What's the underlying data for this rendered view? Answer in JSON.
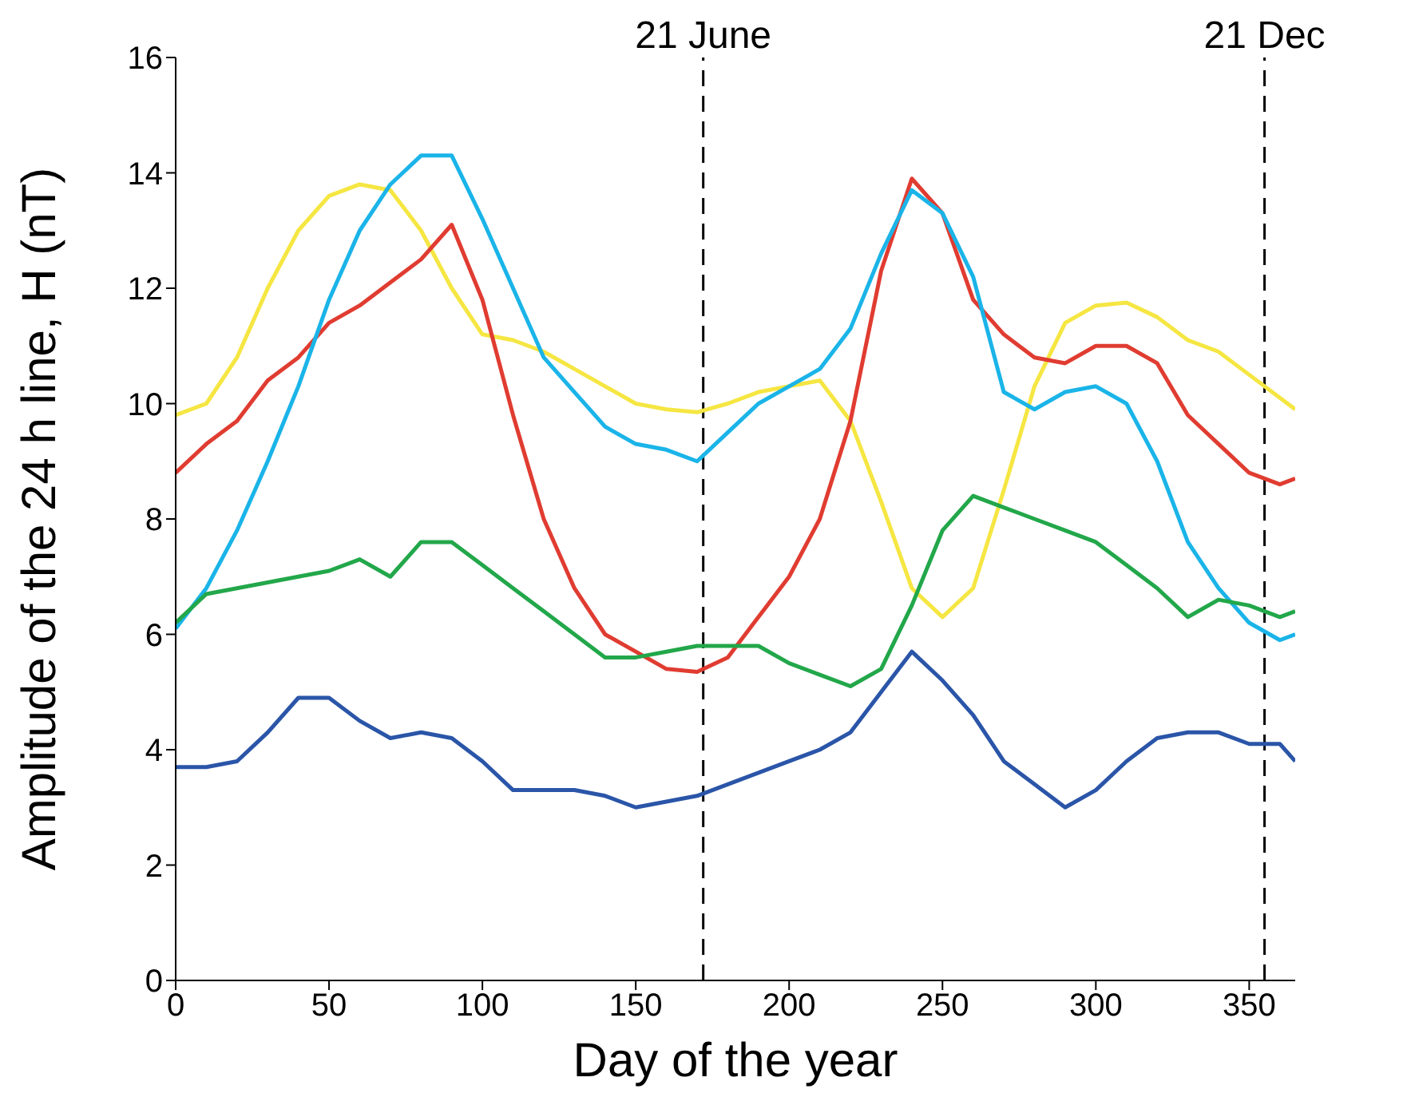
{
  "chart_data": {
    "type": "line",
    "xlabel": "Day of the year",
    "ylabel": "Amplitude of the 24 h line, H (nT)",
    "x": [
      0,
      10,
      20,
      30,
      40,
      50,
      60,
      70,
      80,
      90,
      100,
      110,
      120,
      130,
      140,
      150,
      160,
      170,
      180,
      190,
      200,
      210,
      220,
      230,
      240,
      250,
      260,
      270,
      280,
      290,
      300,
      310,
      320,
      330,
      340,
      350,
      360,
      365
    ],
    "series": [
      {
        "color": "#f5e642",
        "values": [
          9.8,
          10.0,
          10.8,
          12.0,
          13.0,
          13.6,
          13.8,
          13.7,
          13.0,
          12.0,
          11.2,
          11.1,
          10.9,
          10.6,
          10.3,
          10.0,
          9.9,
          9.85,
          10.0,
          10.2,
          10.3,
          10.4,
          9.7,
          8.3,
          6.8,
          6.3,
          6.8,
          8.5,
          10.3,
          11.4,
          11.7,
          11.75,
          11.5,
          11.1,
          10.9,
          10.5,
          10.1,
          9.9
        ]
      },
      {
        "color": "#e03c31",
        "values": [
          8.8,
          9.3,
          9.7,
          10.4,
          10.8,
          11.4,
          11.7,
          12.1,
          12.5,
          13.1,
          11.8,
          9.8,
          8.0,
          6.8,
          6.0,
          5.7,
          5.4,
          5.35,
          5.6,
          6.3,
          7.0,
          8.0,
          9.7,
          12.3,
          13.9,
          13.3,
          11.8,
          11.2,
          10.8,
          10.7,
          11.0,
          11.0,
          10.7,
          9.8,
          9.3,
          8.8,
          8.6,
          8.7
        ]
      },
      {
        "color": "#1ab4e8",
        "values": [
          6.1,
          6.8,
          7.8,
          9.0,
          10.3,
          11.8,
          13.0,
          13.8,
          14.3,
          14.3,
          13.2,
          12.0,
          10.8,
          10.2,
          9.6,
          9.3,
          9.2,
          9.0,
          9.5,
          10.0,
          10.3,
          10.6,
          11.3,
          12.6,
          13.7,
          13.3,
          12.2,
          10.2,
          9.9,
          10.2,
          10.3,
          10.0,
          9.0,
          7.6,
          6.8,
          6.2,
          5.9,
          6.0
        ]
      },
      {
        "color": "#22a74a",
        "values": [
          6.2,
          6.7,
          6.8,
          6.9,
          7.0,
          7.1,
          7.3,
          7.0,
          7.6,
          7.6,
          7.2,
          6.8,
          6.4,
          6.0,
          5.6,
          5.6,
          5.7,
          5.8,
          5.8,
          5.8,
          5.5,
          5.3,
          5.1,
          5.4,
          6.5,
          7.8,
          8.4,
          8.2,
          8.0,
          7.8,
          7.6,
          7.2,
          6.8,
          6.3,
          6.6,
          6.5,
          6.3,
          6.4
        ]
      },
      {
        "color": "#2a55a8",
        "values": [
          3.7,
          3.7,
          3.8,
          4.3,
          4.9,
          4.9,
          4.5,
          4.2,
          4.3,
          4.2,
          3.8,
          3.3,
          3.3,
          3.3,
          3.2,
          3.0,
          3.1,
          3.2,
          3.4,
          3.6,
          3.8,
          4.0,
          4.3,
          5.0,
          5.7,
          5.2,
          4.6,
          3.8,
          3.4,
          3.0,
          3.3,
          3.8,
          4.2,
          4.3,
          4.3,
          4.1,
          4.1,
          3.8
        ]
      }
    ],
    "xlim": [
      0,
      365
    ],
    "xticks": [
      0,
      50,
      100,
      150,
      200,
      250,
      300,
      350
    ],
    "ylim": [
      0,
      16
    ],
    "yticks": [
      0,
      2,
      4,
      6,
      8,
      10,
      12,
      14,
      16
    ],
    "ref_lines": [
      {
        "axis": "x",
        "value": 172,
        "label": "21 June",
        "color": "#000000",
        "line_style": "dashed"
      },
      {
        "axis": "x",
        "value": 355,
        "label": "21 Dec",
        "color": "#000000",
        "line_style": "dashed"
      }
    ],
    "grid": false,
    "legend": false,
    "marker": "none",
    "line_style": "solid"
  }
}
